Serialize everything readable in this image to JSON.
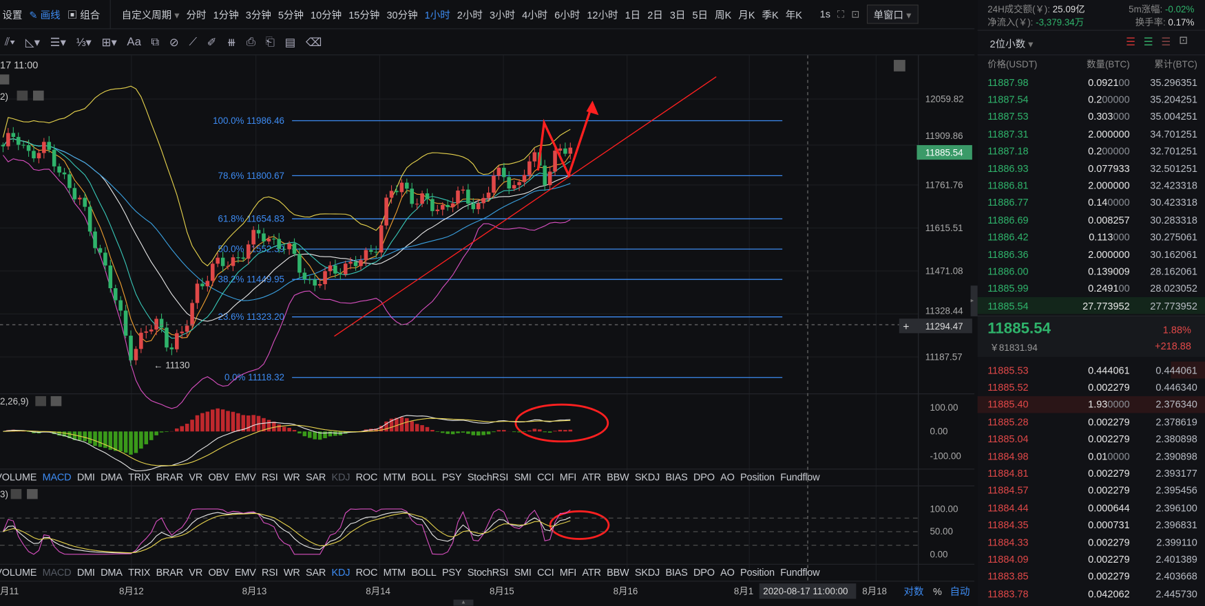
{
  "toolbar": {
    "settings": "设置",
    "draw": "画线",
    "combo": "组合",
    "custom_period": "自定义周期",
    "timeframes": [
      "分时",
      "1分钟",
      "3分钟",
      "5分钟",
      "10分钟",
      "15分钟",
      "30分钟",
      "1小时",
      "2小时",
      "3小时",
      "4小时",
      "6小时",
      "12小时",
      "1日",
      "2日",
      "3日",
      "5日",
      "周K",
      "月K",
      "季K",
      "年K"
    ],
    "active_timeframe": "1小时",
    "interval": "1s",
    "window_mode": "单窗口"
  },
  "chart": {
    "crosshair_time_label": "17 11:00",
    "legend_main_suffix": "2)",
    "macd_legend": "2,26,9)",
    "kdj_legend": "3)",
    "price_ticks": [
      "12059.82",
      "11909.86",
      "11761.76",
      "11615.51",
      "11471.08",
      "11328.44",
      "11187.57"
    ],
    "current_price": "11885.54",
    "crosshair_price": "11294.47",
    "low_marker": "← 11130",
    "fib_levels": [
      {
        "label": "100.0% 11986.46",
        "price": 11986.46
      },
      {
        "label": "78.6% 11800.67",
        "price": 11800.67
      },
      {
        "label": "61.8% 11654.83",
        "price": 11654.83
      },
      {
        "label": "50.0% 11552.39",
        "price": 11552.39
      },
      {
        "label": "38.2% 11449.95",
        "price": 11449.95
      },
      {
        "label": "23.6% 11323.20",
        "price": 11323.2
      },
      {
        "label": "0.0% 11118.32",
        "price": 11118.32
      }
    ],
    "price_series": [
      11900,
      11930,
      11880,
      11890,
      11850,
      11780,
      11700,
      11600,
      11480,
      11330,
      11200,
      11270,
      11300,
      11230,
      11260,
      11420,
      11480,
      11500,
      11520,
      11560,
      11610,
      11580,
      11550,
      11500,
      11420,
      11460,
      11500,
      11490,
      11520,
      11580,
      11740,
      11770,
      11720,
      11700,
      11690,
      11730,
      11720,
      11700,
      11790,
      11800,
      11760,
      11870,
      11800,
      11880,
      11885
    ],
    "macd_ticks": [
      "100.00",
      "0.00",
      "-100.00"
    ],
    "kdj_ticks": [
      "100.00",
      "50.00",
      "0.00"
    ],
    "indicators": [
      "VOLUME",
      "MACD",
      "DMI",
      "DMA",
      "TRIX",
      "BRAR",
      "VR",
      "OBV",
      "EMV",
      "RSI",
      "WR",
      "SAR",
      "KDJ",
      "ROC",
      "MTM",
      "BOLL",
      "PSY",
      "StochRSI",
      "SMI",
      "CCI",
      "MFI",
      "ATR",
      "BBW",
      "SKDJ",
      "BIAS",
      "DPO",
      "AO",
      "Position",
      "Fundflow"
    ],
    "indicator_row1_active": "MACD",
    "indicator_row2_active": "KDJ",
    "dates": [
      "月11",
      "8月12",
      "8月13",
      "8月14",
      "8月15",
      "8月16",
      "8月1",
      "8月18"
    ],
    "crosshair_date": "2020-08-17 11:00:00",
    "axis_log": "对数",
    "axis_percent": "%",
    "axis_auto": "自动",
    "colors": {
      "up": "#e04848",
      "down": "#2fb36b",
      "fib": "#3d8bf2",
      "annotation": "#ff2020"
    }
  },
  "stats": {
    "volume_label": "24H成交额(￥):",
    "volume_value": "25.09亿",
    "change_label": "5m涨幅:",
    "change_value": "-0.02%",
    "netflow_label": "净流入(￥):",
    "netflow_value": "-3,379.34万",
    "turnover_label": "换手率:",
    "turnover_value": "0.17%"
  },
  "orderbook": {
    "precision": "2位小数",
    "headers": [
      "价格(USDT)",
      "数量(BTC)",
      "累计(BTC)"
    ],
    "asks": [
      {
        "price": "11887.98",
        "qty": "0.0921",
        "trail": "00",
        "total": "35.296351"
      },
      {
        "price": "11887.54",
        "qty": "0.2",
        "trail": "00000",
        "total": "35.204251"
      },
      {
        "price": "11887.53",
        "qty": "0.303",
        "trail": "000",
        "total": "35.004251"
      },
      {
        "price": "11887.31",
        "qty": "2.000000",
        "trail": "",
        "total": "34.701251"
      },
      {
        "price": "11887.18",
        "qty": "0.2",
        "trail": "00000",
        "total": "32.701251"
      },
      {
        "price": "11886.93",
        "qty": "0.077933",
        "trail": "",
        "total": "32.501251"
      },
      {
        "price": "11886.81",
        "qty": "2.000000",
        "trail": "",
        "total": "32.423318"
      },
      {
        "price": "11886.77",
        "qty": "0.14",
        "trail": "0000",
        "total": "30.423318"
      },
      {
        "price": "11886.69",
        "qty": "0.008257",
        "trail": "",
        "total": "30.283318"
      },
      {
        "price": "11886.42",
        "qty": "0.113",
        "trail": "000",
        "total": "30.275061"
      },
      {
        "price": "11886.36",
        "qty": "2.000000",
        "trail": "",
        "total": "30.162061"
      },
      {
        "price": "11886.00",
        "qty": "0.139009",
        "trail": "",
        "total": "28.162061"
      },
      {
        "price": "11885.99",
        "qty": "0.2491",
        "trail": "00",
        "total": "28.023052"
      },
      {
        "price": "11885.54",
        "qty": "27.773952",
        "trail": "",
        "total": "27.773952"
      }
    ],
    "last_price": "11885.54",
    "last_price_cny": "￥81831.94",
    "change_pct": "1.88%",
    "change_abs": "+218.88",
    "bids": [
      {
        "price": "11885.53",
        "qty": "0.444061",
        "trail": "",
        "total": "0.444061"
      },
      {
        "price": "11885.52",
        "qty": "0.002279",
        "trail": "",
        "total": "0.446340"
      },
      {
        "price": "11885.40",
        "qty": "1.93",
        "trail": "0000",
        "total": "2.376340"
      },
      {
        "price": "11885.28",
        "qty": "0.002279",
        "trail": "",
        "total": "2.378619"
      },
      {
        "price": "11885.04",
        "qty": "0.002279",
        "trail": "",
        "total": "2.380898"
      },
      {
        "price": "11884.98",
        "qty": "0.01",
        "trail": "0000",
        "total": "2.390898"
      },
      {
        "price": "11884.81",
        "qty": "0.002279",
        "trail": "",
        "total": "2.393177"
      },
      {
        "price": "11884.57",
        "qty": "0.002279",
        "trail": "",
        "total": "2.395456"
      },
      {
        "price": "11884.44",
        "qty": "0.000644",
        "trail": "",
        "total": "2.396100"
      },
      {
        "price": "11884.35",
        "qty": "0.000731",
        "trail": "",
        "total": "2.396831"
      },
      {
        "price": "11884.33",
        "qty": "0.002279",
        "trail": "",
        "total": "2.399110"
      },
      {
        "price": "11884.09",
        "qty": "0.002279",
        "trail": "",
        "total": "2.401389"
      },
      {
        "price": "11883.85",
        "qty": "0.002279",
        "trail": "",
        "total": "2.403668"
      },
      {
        "price": "11883.78",
        "qty": "0.042062",
        "trail": "",
        "total": "2.445730"
      }
    ]
  }
}
